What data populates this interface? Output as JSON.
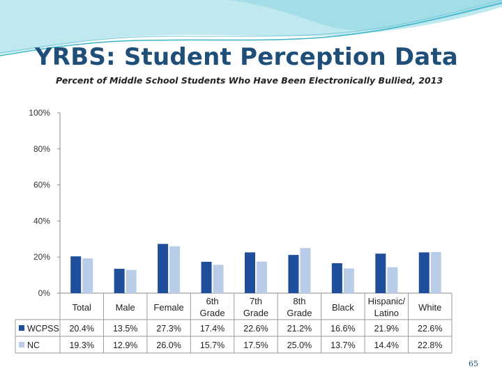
{
  "slide": {
    "title": "YRBS:  Student Perception Data",
    "page_number": "65"
  },
  "colors": {
    "title": "#1f4e79",
    "header_wave_dark": "#3ab5c8",
    "header_wave_light": "#bfe8ef",
    "wcpss": "#1f4e9a",
    "nc": "#b9cde8"
  },
  "chart_data": {
    "type": "bar",
    "title": "Percent of Middle School Students Who Have Been Electronically Bullied, 2013",
    "categories": [
      [
        "Total"
      ],
      [
        "Male"
      ],
      [
        "Female"
      ],
      [
        "6th",
        "Grade"
      ],
      [
        "7th",
        "Grade"
      ],
      [
        "8th",
        "Grade"
      ],
      [
        "Black"
      ],
      [
        "Hispanic/",
        "Latino"
      ],
      [
        "White"
      ]
    ],
    "series": [
      {
        "name": "WCPSS",
        "values": [
          20.4,
          13.5,
          27.3,
          17.4,
          22.6,
          21.2,
          16.6,
          21.9,
          22.6
        ],
        "labels": [
          "20.4%",
          "13.5%",
          "27.3%",
          "17.4%",
          "22.6%",
          "21.2%",
          "16.6%",
          "21.9%",
          "22.6%"
        ]
      },
      {
        "name": "NC",
        "values": [
          19.3,
          12.9,
          26.0,
          15.7,
          17.5,
          25.0,
          13.7,
          14.4,
          22.8
        ],
        "labels": [
          "19.3%",
          "12.9%",
          "26.0%",
          "15.7%",
          "17.5%",
          "25.0%",
          "13.7%",
          "14.4%",
          "22.8%"
        ]
      }
    ],
    "y_ticks": [
      "0%",
      "20%",
      "40%",
      "60%",
      "80%",
      "100%"
    ],
    "ylim": [
      0,
      100
    ],
    "legend": "data-table"
  }
}
